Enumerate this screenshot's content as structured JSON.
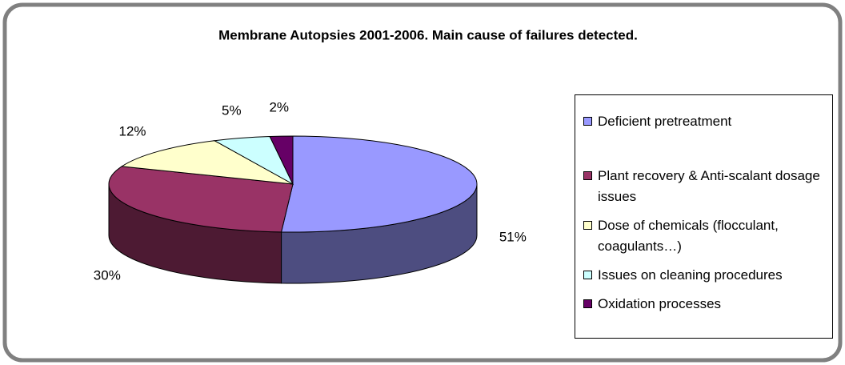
{
  "chart_data": {
    "type": "pie3d",
    "title": "Membrane Autopsies 2001-2006. Main cause of failures detected.",
    "categories": [
      "Deficient pretreatment",
      "Plant recovery & Anti-scalant dosage issues",
      "Dose of chemicals (flocculant, coagulants…)",
      "Issues on cleaning procedures",
      "Oxidation processes"
    ],
    "values": [
      51,
      30,
      12,
      5,
      2
    ],
    "value_labels": [
      "51%",
      "30%",
      "12%",
      "5%",
      "2%"
    ],
    "colors": [
      "#9999ff",
      "#993366",
      "#ffffcc",
      "#ccffff",
      "#660066"
    ],
    "legend": "right"
  }
}
